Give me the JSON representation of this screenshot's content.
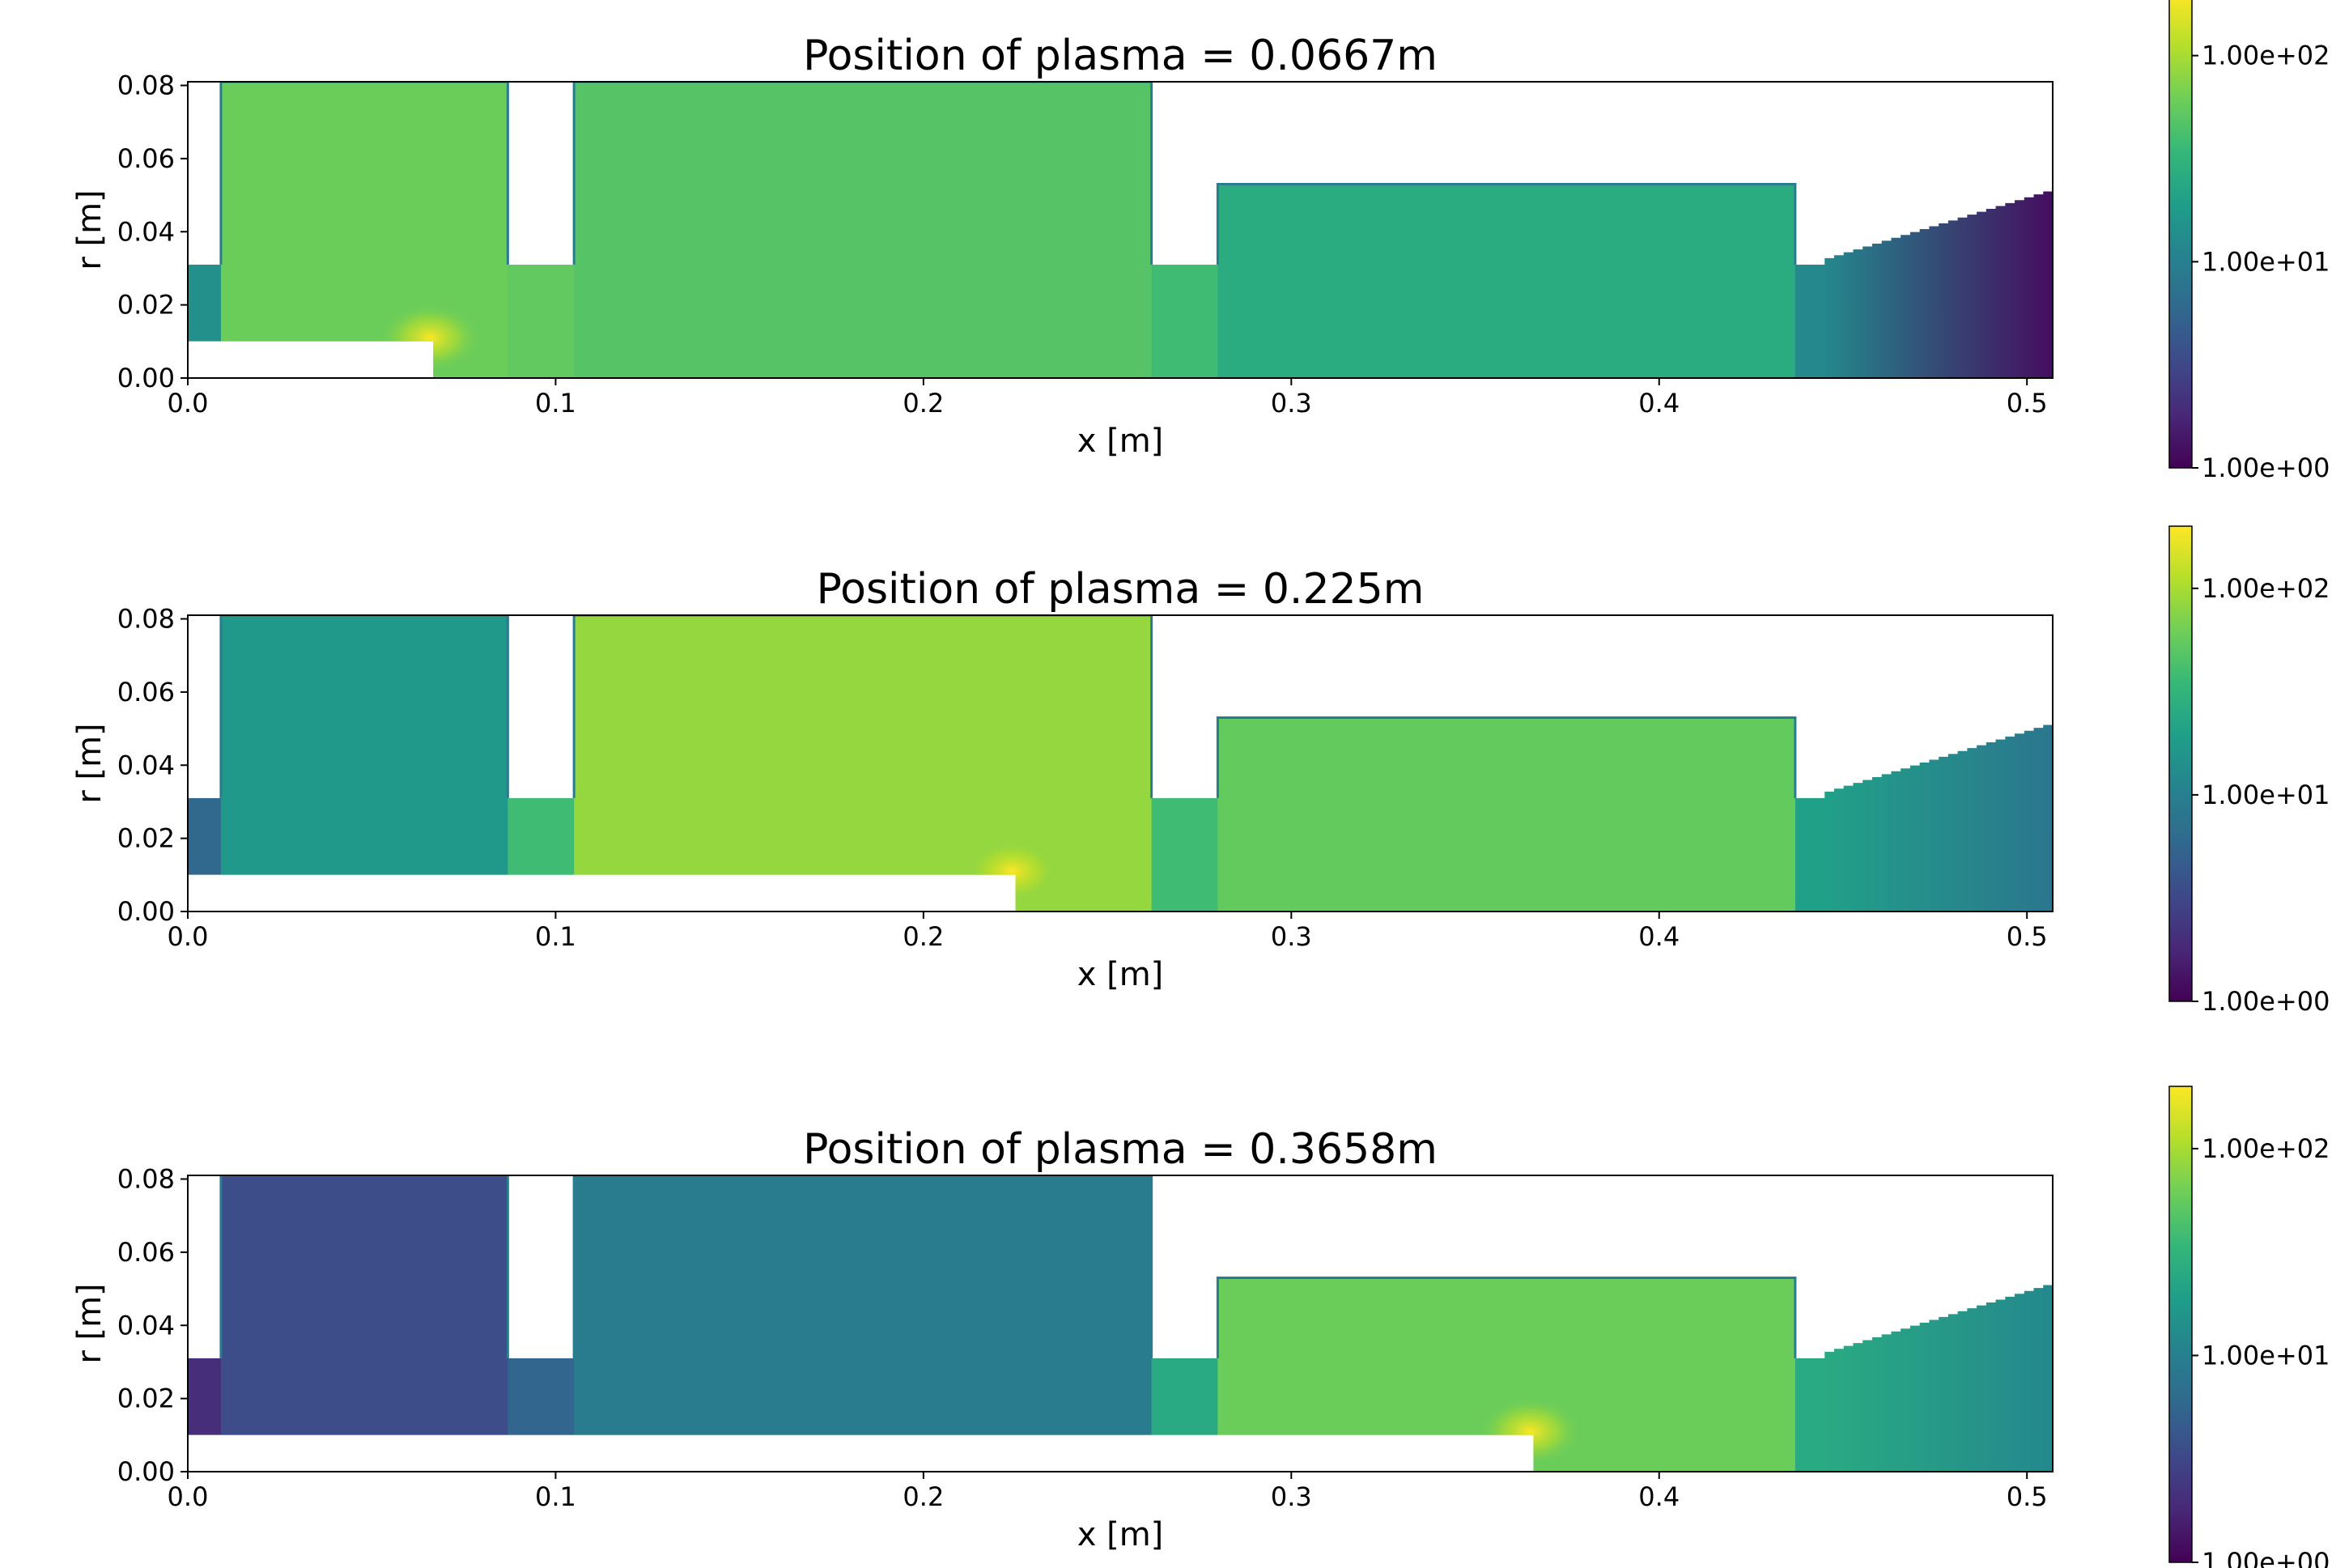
{
  "chart_data": [
    {
      "type": "heatmap",
      "title": "Position of plasma = 0.0667m",
      "xlabel": "x [m]",
      "ylabel": "r [m]",
      "xlim": [
        0.0,
        0.507
      ],
      "ylim": [
        0.0,
        0.081
      ],
      "xticks": [
        {
          "value": 0.0,
          "label": "0.0"
        },
        {
          "value": 0.1,
          "label": "0.1"
        },
        {
          "value": 0.2,
          "label": "0.2"
        },
        {
          "value": 0.3,
          "label": "0.3"
        },
        {
          "value": 0.4,
          "label": "0.4"
        },
        {
          "value": 0.5,
          "label": "0.5"
        }
      ],
      "yticks": [
        {
          "value": 0.0,
          "label": "0.00"
        },
        {
          "value": 0.02,
          "label": "0.02"
        },
        {
          "value": 0.04,
          "label": "0.04"
        },
        {
          "value": 0.06,
          "label": "0.06"
        },
        {
          "value": 0.08,
          "label": "0.08"
        }
      ],
      "plasma_position": 0.0667,
      "colorbar": {
        "scale": "log",
        "range": [
          1,
          200
        ],
        "ticks": [
          {
            "value": 1,
            "label": "1.00e+00"
          },
          {
            "value": 10,
            "label": "1.00e+01"
          },
          {
            "value": 100,
            "label": "1.00e+02"
          }
        ]
      },
      "region_values": {
        "bore": 14,
        "cav1": 60,
        "cav2": 48,
        "tube": 38,
        "cav3": 26,
        "gap": 12,
        "horn": 1.2
      }
    },
    {
      "type": "heatmap",
      "title": "Position of plasma = 0.225m",
      "xlabel": "x [m]",
      "ylabel": "r [m]",
      "xlim": [
        0.0,
        0.507
      ],
      "ylim": [
        0.0,
        0.081
      ],
      "xticks": [
        {
          "value": 0.0,
          "label": "0.0"
        },
        {
          "value": 0.1,
          "label": "0.1"
        },
        {
          "value": 0.2,
          "label": "0.2"
        },
        {
          "value": 0.3,
          "label": "0.3"
        },
        {
          "value": 0.4,
          "label": "0.4"
        },
        {
          "value": 0.5,
          "label": "0.5"
        }
      ],
      "yticks": [
        {
          "value": 0.0,
          "label": "0.00"
        },
        {
          "value": 0.02,
          "label": "0.02"
        },
        {
          "value": 0.04,
          "label": "0.04"
        },
        {
          "value": 0.06,
          "label": "0.06"
        },
        {
          "value": 0.08,
          "label": "0.08"
        }
      ],
      "plasma_position": 0.225,
      "colorbar": {
        "scale": "log",
        "range": [
          1,
          200
        ],
        "ticks": [
          {
            "value": 1,
            "label": "1.00e+00"
          },
          {
            "value": 10,
            "label": "1.00e+01"
          },
          {
            "value": 100,
            "label": "1.00e+02"
          }
        ]
      },
      "region_values": {
        "bore": 6,
        "cav1": 17,
        "cav2": 85,
        "tube": 38,
        "cav3": 55,
        "gap": 20,
        "horn": 8
      }
    },
    {
      "type": "heatmap",
      "title": "Position of plasma = 0.3658m",
      "xlabel": "x [m]",
      "ylabel": "r [m]",
      "xlim": [
        0.0,
        0.507
      ],
      "ylim": [
        0.0,
        0.081
      ],
      "xticks": [
        {
          "value": 0.0,
          "label": "0.0"
        },
        {
          "value": 0.1,
          "label": "0.1"
        },
        {
          "value": 0.2,
          "label": "0.2"
        },
        {
          "value": 0.3,
          "label": "0.3"
        },
        {
          "value": 0.4,
          "label": "0.4"
        },
        {
          "value": 0.5,
          "label": "0.5"
        }
      ],
      "yticks": [
        {
          "value": 0.0,
          "label": "0.00"
        },
        {
          "value": 0.02,
          "label": "0.02"
        },
        {
          "value": 0.04,
          "label": "0.04"
        },
        {
          "value": 0.06,
          "label": "0.06"
        },
        {
          "value": 0.08,
          "label": "0.08"
        }
      ],
      "plasma_position": 0.3658,
      "colorbar": {
        "scale": "log",
        "range": [
          1,
          200
        ],
        "ticks": [
          {
            "value": 1,
            "label": "1.00e+00"
          },
          {
            "value": 10,
            "label": "1.00e+01"
          },
          {
            "value": 100,
            "label": "1.00e+02"
          }
        ]
      },
      "region_values": {
        "bore": 2,
        "cav1": 3.5,
        "cav2": 9,
        "tube": 25,
        "cav3": 60,
        "gap": 25,
        "horn": 12
      }
    }
  ],
  "colors": {
    "viridis_stops": [
      "#440154",
      "#482878",
      "#3e4989",
      "#31688e",
      "#26828e",
      "#1f9e89",
      "#35b779",
      "#6ece58",
      "#b5de2b",
      "#fde725"
    ],
    "axes_edge": "#000000",
    "background": "#ffffff"
  }
}
